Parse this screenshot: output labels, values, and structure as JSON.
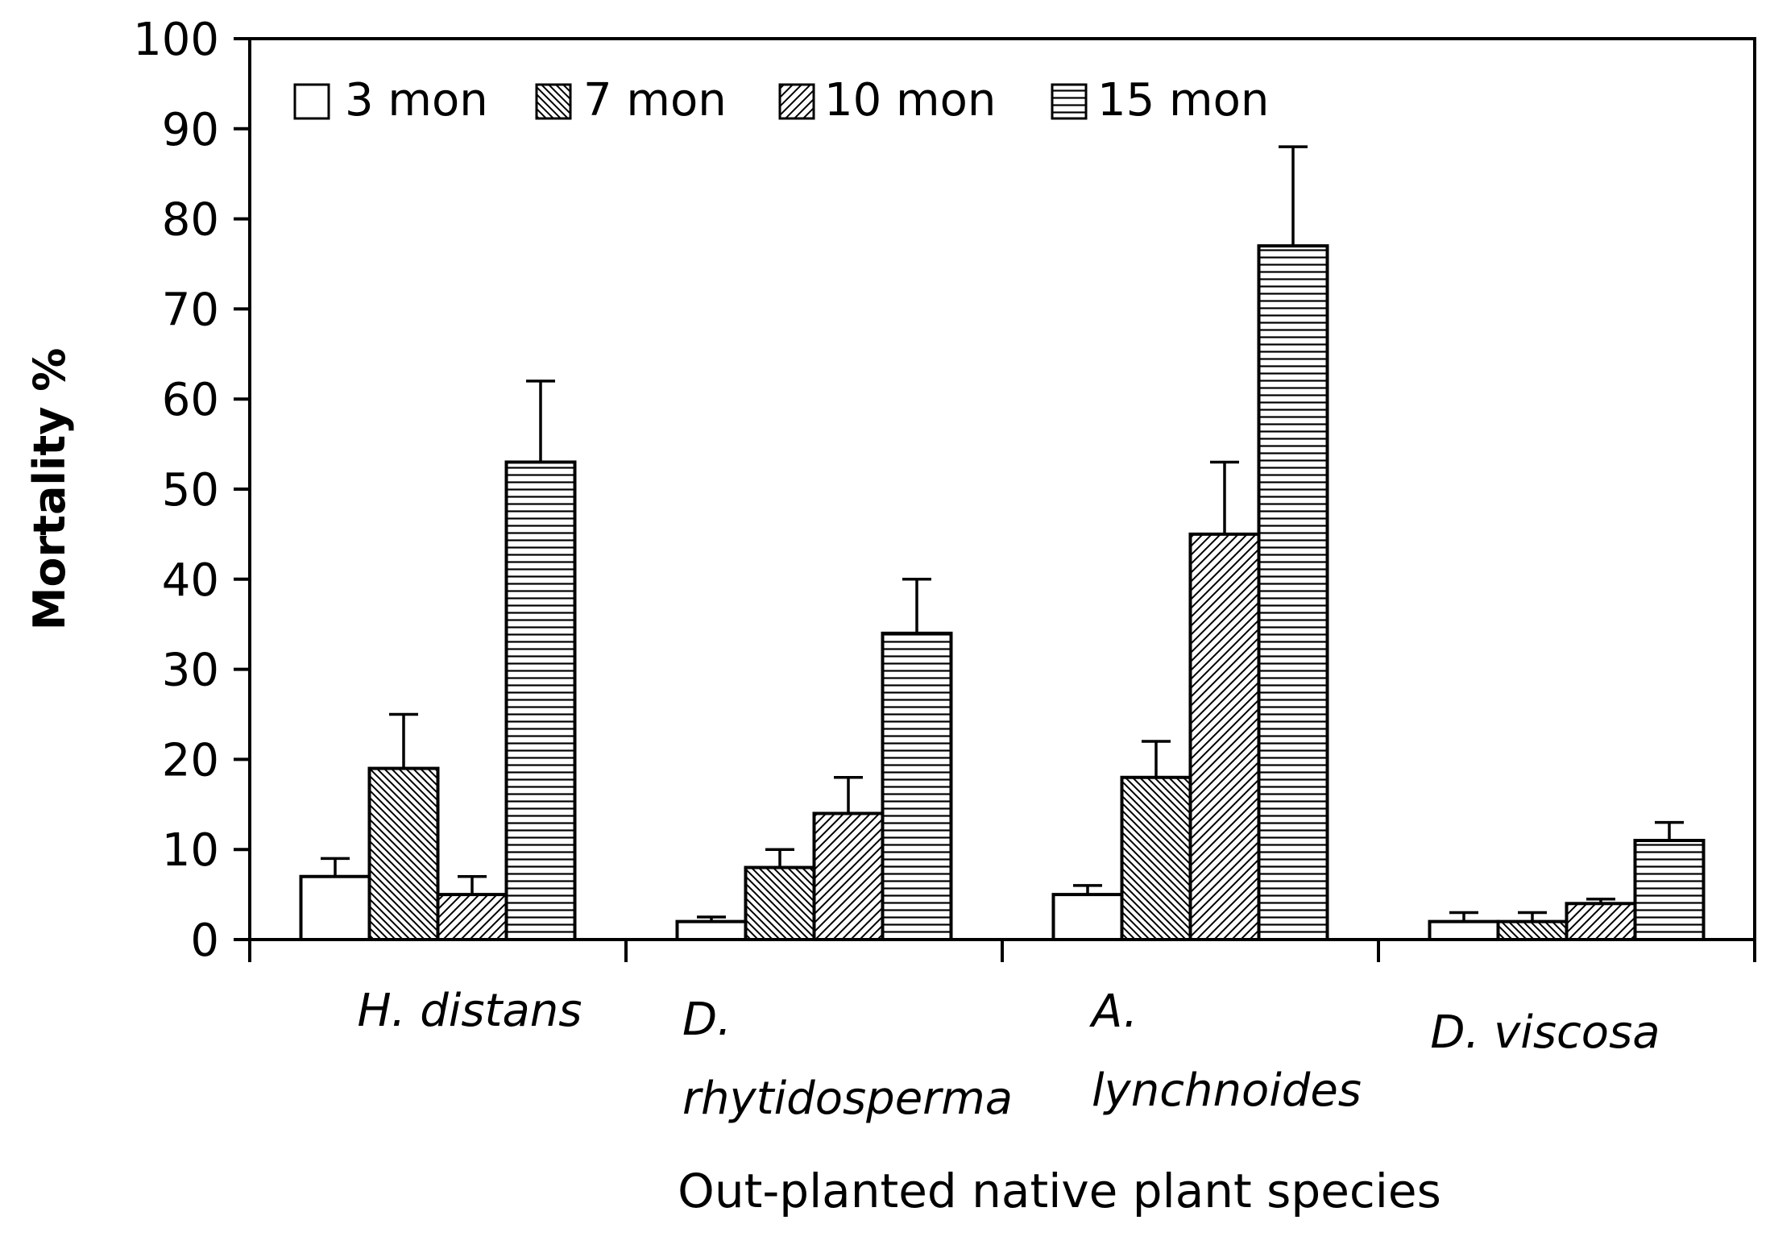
{
  "chart_data": {
    "type": "bar",
    "title": "",
    "xlabel": "Out-planted native plant species",
    "ylabel": "Mortality %",
    "ylim": [
      0,
      100
    ],
    "yticks": [
      "0",
      "10",
      "20",
      "30",
      "40",
      "50",
      "60",
      "70",
      "80",
      "90",
      "100"
    ],
    "categories": [
      [
        "H. distans"
      ],
      [
        "D.",
        "rhytidosperma"
      ],
      [
        "A.",
        "lynchnoides"
      ],
      [
        "D. viscosa"
      ]
    ],
    "series": [
      {
        "name": "3 mon",
        "pattern": "none",
        "values": [
          7,
          2,
          5,
          2
        ],
        "errors": [
          2,
          0.5,
          1,
          1
        ]
      },
      {
        "name": "7 mon",
        "pattern": "dense-backslash",
        "values": [
          19,
          8,
          18,
          2
        ],
        "errors": [
          6,
          2,
          4,
          1
        ]
      },
      {
        "name": "10 mon",
        "pattern": "slash",
        "values": [
          5,
          14,
          45,
          4
        ],
        "errors": [
          2,
          4,
          8,
          0.5
        ]
      },
      {
        "name": "15 mon",
        "pattern": "horizontal",
        "values": [
          53,
          34,
          77,
          11
        ],
        "errors": [
          9,
          6,
          11,
          2
        ]
      }
    ],
    "legend_position": "top-left",
    "grid": false
  }
}
